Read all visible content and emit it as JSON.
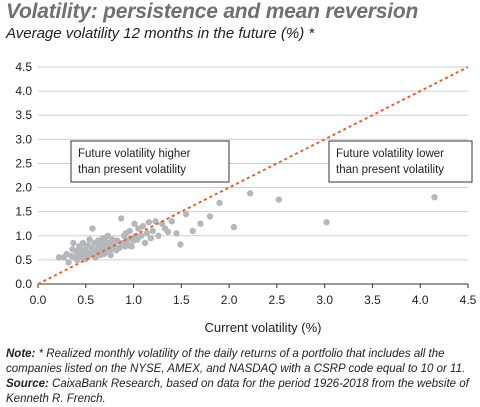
{
  "header": {
    "title": "Volatility: persistence and mean reversion",
    "subtitle": "Average volatility 12 months in the future (%) *"
  },
  "chart_data": {
    "type": "scatter",
    "xlabel": "Current volatility (%)",
    "ylabel": "",
    "xlim": [
      0,
      4.5
    ],
    "ylim": [
      0,
      4.5
    ],
    "xticks": [
      "0.0",
      "0.5",
      "1.0",
      "1.5",
      "2.0",
      "2.5",
      "3.0",
      "3.5",
      "4.0",
      "4.5"
    ],
    "yticks": [
      "0.0",
      "0.5",
      "1.0",
      "1.5",
      "2.0",
      "2.5",
      "3.0",
      "3.5",
      "4.0",
      "4.5"
    ],
    "grid": "horizontal",
    "colors": {
      "points": "#b4b8bc",
      "diagonal": "#e8612c",
      "axis": "#333333",
      "grid": "#cfcfcf"
    },
    "annotations": [
      {
        "text": "Future volatility higher than present volatility",
        "lines": [
          "Future volatility higher",
          "than present volatility"
        ]
      },
      {
        "text": "Future volatility lower than present volatility",
        "lines": [
          "Future volatility lower",
          "than present volatility"
        ]
      }
    ],
    "reference_line": {
      "type": "diagonal",
      "from": [
        0,
        0
      ],
      "to": [
        4.5,
        4.5
      ],
      "style": "dotted"
    },
    "points": [
      [
        0.22,
        0.55
      ],
      [
        0.27,
        0.55
      ],
      [
        0.3,
        0.62
      ],
      [
        0.32,
        0.45
      ],
      [
        0.35,
        0.58
      ],
      [
        0.36,
        0.72
      ],
      [
        0.37,
        0.85
      ],
      [
        0.38,
        0.55
      ],
      [
        0.4,
        0.68
      ],
      [
        0.41,
        0.5
      ],
      [
        0.42,
        0.62
      ],
      [
        0.43,
        0.78
      ],
      [
        0.44,
        0.58
      ],
      [
        0.45,
        0.7
      ],
      [
        0.46,
        0.55
      ],
      [
        0.47,
        0.85
      ],
      [
        0.48,
        0.62
      ],
      [
        0.49,
        0.72
      ],
      [
        0.5,
        0.52
      ],
      [
        0.51,
        0.66
      ],
      [
        0.52,
        0.8
      ],
      [
        0.53,
        0.58
      ],
      [
        0.54,
        0.92
      ],
      [
        0.55,
        0.62
      ],
      [
        0.56,
        0.75
      ],
      [
        0.57,
        1.15
      ],
      [
        0.58,
        0.68
      ],
      [
        0.59,
        0.85
      ],
      [
        0.6,
        0.55
      ],
      [
        0.61,
        0.72
      ],
      [
        0.62,
        0.65
      ],
      [
        0.63,
        0.9
      ],
      [
        0.64,
        0.78
      ],
      [
        0.65,
        0.6
      ],
      [
        0.66,
        0.82
      ],
      [
        0.67,
        0.7
      ],
      [
        0.68,
        0.95
      ],
      [
        0.69,
        0.62
      ],
      [
        0.7,
        0.78
      ],
      [
        0.71,
        0.88
      ],
      [
        0.72,
        0.68
      ],
      [
        0.73,
        1.0
      ],
      [
        0.74,
        0.75
      ],
      [
        0.75,
        0.85
      ],
      [
        0.76,
        0.6
      ],
      [
        0.77,
        0.72
      ],
      [
        0.78,
        0.92
      ],
      [
        0.8,
        0.8
      ],
      [
        0.82,
        0.7
      ],
      [
        0.83,
        0.9
      ],
      [
        0.85,
        0.75
      ],
      [
        0.87,
        1.36
      ],
      [
        0.88,
        0.85
      ],
      [
        0.9,
        1.0
      ],
      [
        0.91,
        0.78
      ],
      [
        0.92,
        1.05
      ],
      [
        0.93,
        0.9
      ],
      [
        0.95,
        0.8
      ],
      [
        0.96,
        1.1
      ],
      [
        0.97,
        0.95
      ],
      [
        0.98,
        0.78
      ],
      [
        1.0,
        0.9
      ],
      [
        1.01,
        1.25
      ],
      [
        1.02,
        1.0
      ],
      [
        1.04,
        0.92
      ],
      [
        1.05,
        1.15
      ],
      [
        1.08,
        1.0
      ],
      [
        1.1,
        1.2
      ],
      [
        1.12,
        0.85
      ],
      [
        1.14,
        1.05
      ],
      [
        1.16,
        1.28
      ],
      [
        1.18,
        0.95
      ],
      [
        1.2,
        1.1
      ],
      [
        1.23,
        1.3
      ],
      [
        1.26,
        1.0
      ],
      [
        1.3,
        1.25
      ],
      [
        1.33,
        1.15
      ],
      [
        1.36,
        1.08
      ],
      [
        1.4,
        1.3
      ],
      [
        1.45,
        1.05
      ],
      [
        1.49,
        0.82
      ],
      [
        1.55,
        1.45
      ],
      [
        1.62,
        1.1
      ],
      [
        1.7,
        1.25
      ],
      [
        1.8,
        1.4
      ],
      [
        1.9,
        1.68
      ],
      [
        2.05,
        1.18
      ],
      [
        2.22,
        1.88
      ],
      [
        2.52,
        1.75
      ],
      [
        3.02,
        1.28
      ],
      [
        4.15,
        1.8
      ]
    ]
  },
  "footer": {
    "note_label": "Note: ",
    "note_text": "* Realized monthly volatility of the daily returns of a portfolio that includes all the companies listed on the NYSE, AMEX, and NASDAQ with a CSRP code equal to 10 or 11.",
    "source_label": "Source: ",
    "source_text": "CaixaBank Research, based on data for the period 1926-2018 from the website of Kenneth R. French."
  }
}
